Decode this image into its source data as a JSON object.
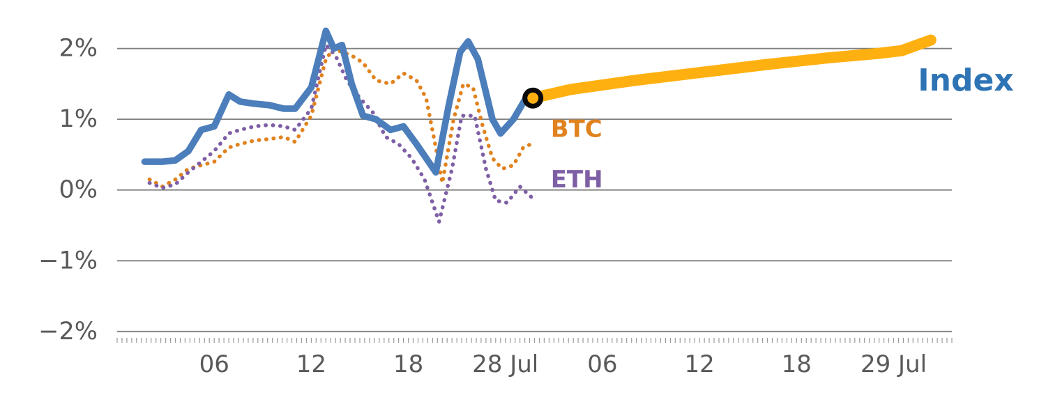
{
  "figure": {
    "background": "#ffffff",
    "axis_label_color": "#595959",
    "grid_color": "#808080",
    "minor_tick_color": "#999999"
  },
  "chart_data": {
    "type": "line",
    "title": "",
    "xlabel": "",
    "ylabel": "",
    "x_unit": "hours-from-27-jul-00:00",
    "xlim": [
      0,
      51.6
    ],
    "ylim": [
      -2.15,
      2.45
    ],
    "grid": "horizontal",
    "legend_position": "inline-labels",
    "y_ticks": [
      {
        "value": 2,
        "label": "2%"
      },
      {
        "value": 1,
        "label": "1%"
      },
      {
        "value": 0,
        "label": "0%"
      },
      {
        "value": -1,
        "label": "−1%"
      },
      {
        "value": -2,
        "label": "−2%"
      }
    ],
    "x_ticks": [
      {
        "t": 6,
        "label": "06"
      },
      {
        "t": 12,
        "label": "12"
      },
      {
        "t": 18,
        "label": "18"
      },
      {
        "t": 24,
        "label": "28 Jul"
      },
      {
        "t": 30,
        "label": "06"
      },
      {
        "t": 36,
        "label": "12"
      },
      {
        "t": 42,
        "label": "18"
      },
      {
        "t": 48,
        "label": "29 Jul"
      }
    ],
    "minor_tick_step": 0.3,
    "series": [
      {
        "name": "BTC",
        "color": "#E0821E",
        "style": "dotted",
        "width": 5.5,
        "points": [
          [
            2,
            0.15
          ],
          [
            2.8,
            0.05
          ],
          [
            3.6,
            0.15
          ],
          [
            4.4,
            0.3
          ],
          [
            5.2,
            0.35
          ],
          [
            6,
            0.4
          ],
          [
            6.9,
            0.6
          ],
          [
            7.6,
            0.65
          ],
          [
            8.5,
            0.7
          ],
          [
            9.4,
            0.72
          ],
          [
            10.3,
            0.75
          ],
          [
            11,
            0.68
          ],
          [
            12,
            1.05
          ],
          [
            12.9,
            1.85
          ],
          [
            13.4,
            2.0
          ],
          [
            13.9,
            1.95
          ],
          [
            14.5,
            1.9
          ],
          [
            15.2,
            1.8
          ],
          [
            16,
            1.55
          ],
          [
            16.9,
            1.5
          ],
          [
            17.7,
            1.65
          ],
          [
            18.5,
            1.55
          ],
          [
            19.1,
            1.3
          ],
          [
            19.7,
            0.6
          ],
          [
            20.1,
            0.1
          ],
          [
            20.8,
            1.0
          ],
          [
            21.4,
            1.5
          ],
          [
            22,
            1.45
          ],
          [
            22.6,
            0.9
          ],
          [
            23.2,
            0.45
          ],
          [
            23.8,
            0.3
          ],
          [
            24.5,
            0.35
          ],
          [
            25.1,
            0.6
          ],
          [
            25.6,
            0.65
          ]
        ]
      },
      {
        "name": "ETH",
        "color": "#7E5FA5",
        "style": "dotted",
        "width": 5.5,
        "points": [
          [
            2,
            0.1
          ],
          [
            2.8,
            0.03
          ],
          [
            3.6,
            0.08
          ],
          [
            4.4,
            0.25
          ],
          [
            5.2,
            0.4
          ],
          [
            6,
            0.55
          ],
          [
            6.9,
            0.8
          ],
          [
            7.6,
            0.85
          ],
          [
            8.5,
            0.9
          ],
          [
            9.4,
            0.92
          ],
          [
            10.3,
            0.9
          ],
          [
            11,
            0.85
          ],
          [
            12,
            1.15
          ],
          [
            12.9,
            2.05
          ],
          [
            13.5,
            1.9
          ],
          [
            14.2,
            1.55
          ],
          [
            15,
            1.3
          ],
          [
            15.8,
            1.1
          ],
          [
            16.6,
            0.75
          ],
          [
            17.4,
            0.65
          ],
          [
            18.2,
            0.45
          ],
          [
            19,
            0.15
          ],
          [
            19.9,
            -0.45
          ],
          [
            20.7,
            0.3
          ],
          [
            21.3,
            1.05
          ],
          [
            22.1,
            1.05
          ],
          [
            22.8,
            0.3
          ],
          [
            23.4,
            -0.15
          ],
          [
            24.1,
            -0.18
          ],
          [
            24.9,
            0.05
          ],
          [
            25.6,
            -0.1
          ]
        ]
      },
      {
        "name": "Index",
        "color": "#4C7EBB",
        "style": "solid",
        "width": 9.5,
        "points": [
          [
            1.7,
            0.4
          ],
          [
            2.8,
            0.4
          ],
          [
            3.6,
            0.42
          ],
          [
            4.4,
            0.55
          ],
          [
            5.2,
            0.85
          ],
          [
            6,
            0.9
          ],
          [
            6.9,
            1.35
          ],
          [
            7.6,
            1.25
          ],
          [
            8.5,
            1.22
          ],
          [
            9.4,
            1.2
          ],
          [
            10.3,
            1.15
          ],
          [
            11,
            1.15
          ],
          [
            12,
            1.45
          ],
          [
            12.9,
            2.25
          ],
          [
            13.4,
            2.0
          ],
          [
            13.9,
            2.05
          ],
          [
            14.5,
            1.5
          ],
          [
            15.2,
            1.05
          ],
          [
            16,
            1.0
          ],
          [
            16.9,
            0.85
          ],
          [
            17.7,
            0.9
          ],
          [
            18.5,
            0.65
          ],
          [
            19.7,
            0.25
          ],
          [
            20.5,
            1.2
          ],
          [
            21.2,
            1.95
          ],
          [
            21.7,
            2.1
          ],
          [
            22.3,
            1.85
          ],
          [
            23.2,
            1.0
          ],
          [
            23.7,
            0.8
          ],
          [
            24.5,
            1.0
          ],
          [
            25.4,
            1.35
          ]
        ]
      },
      {
        "name": "Index forecast",
        "color": "#FFB011",
        "style": "solid",
        "width": 16,
        "points": [
          [
            25.7,
            1.3
          ],
          [
            28,
            1.42
          ],
          [
            32,
            1.55
          ],
          [
            36,
            1.66
          ],
          [
            40,
            1.77
          ],
          [
            44,
            1.87
          ],
          [
            47,
            1.93
          ],
          [
            48.5,
            1.97
          ],
          [
            50.3,
            2.12
          ]
        ]
      }
    ],
    "labels": [
      {
        "text": "Index",
        "color": "#2E74B5",
        "t": 49.5,
        "value": 1.55,
        "size": 44,
        "weight": "bold",
        "anchor": "start"
      },
      {
        "text": "BTC",
        "color": "#E0821E",
        "t": 26.8,
        "value": 0.86,
        "size": 34,
        "weight": "600",
        "anchor": "start"
      },
      {
        "text": "ETH",
        "color": "#7E5FA5",
        "t": 26.8,
        "value": 0.145,
        "size": 34,
        "weight": "600",
        "anchor": "start"
      }
    ],
    "marker": {
      "series": "Index forecast start",
      "t": 25.7,
      "value": 1.3,
      "radius": 11.5,
      "stroke": "#0a0a0a",
      "stroke_width": 7
    }
  }
}
